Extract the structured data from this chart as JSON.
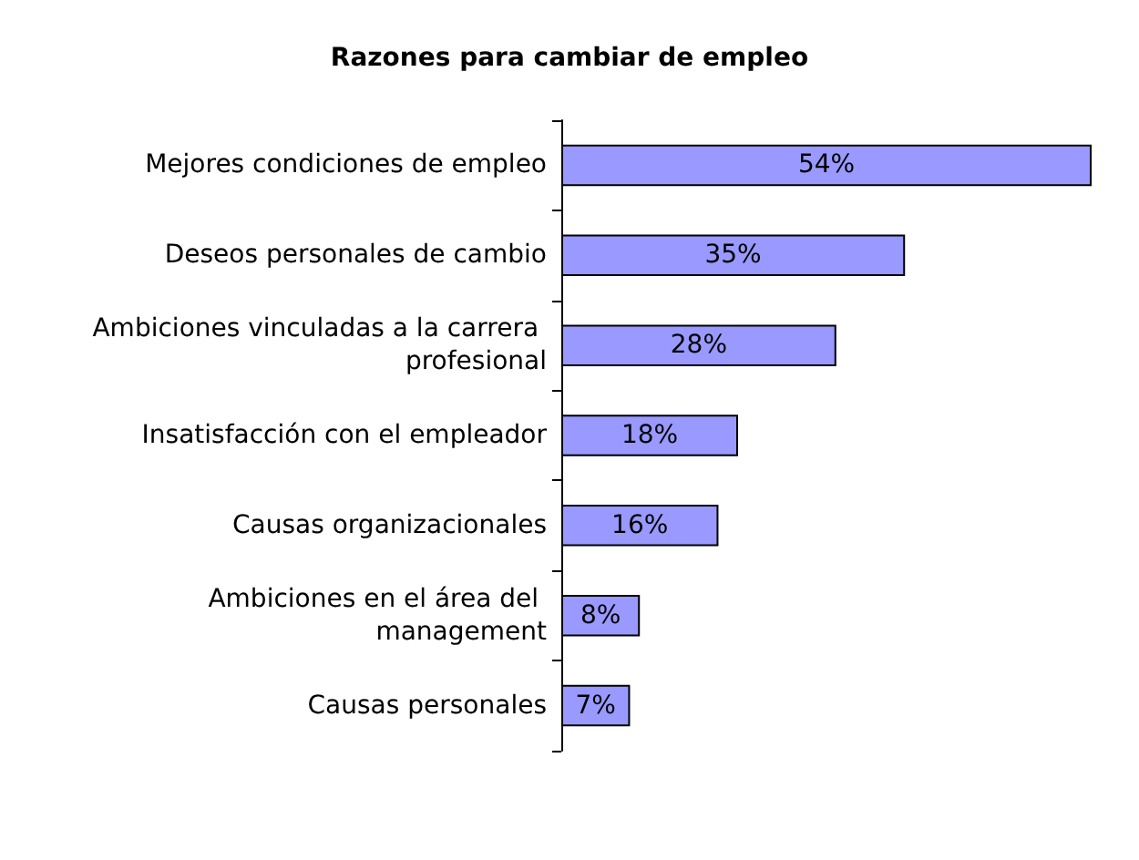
{
  "chart_data": {
    "type": "bar",
    "title": "Razones para cambiar de empleo",
    "orientation": "horizontal",
    "categories": [
      "Mejores condiciones de empleo",
      "Deseos personales de cambio",
      "Ambiciones vinculadas a la carrera profesional",
      "Insatisfacción con el empleador",
      "Causas organizacionales",
      "Ambiciones en el área del management",
      "Causas personales"
    ],
    "values": [
      54,
      35,
      28,
      18,
      16,
      8,
      7
    ],
    "value_labels": [
      "54%",
      "35%",
      "28%",
      "18%",
      "16%",
      "8%",
      "7%"
    ],
    "color": "#9999ff"
  }
}
